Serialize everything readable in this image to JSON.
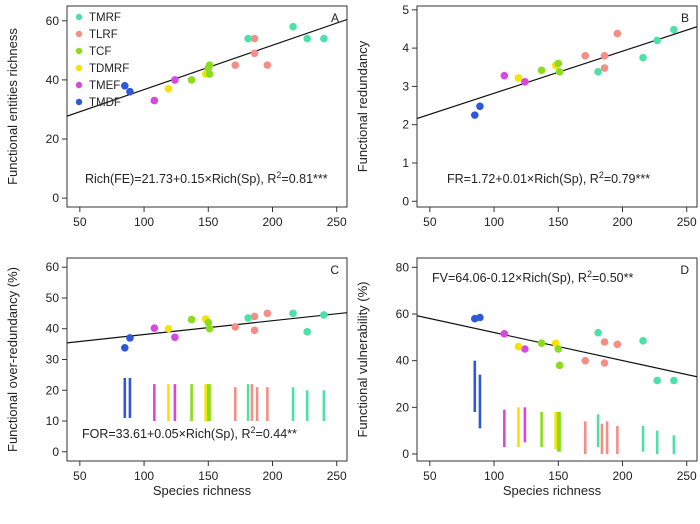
{
  "figure": {
    "xlabel": "Species richness"
  },
  "legend": [
    {
      "name": "TMRF",
      "color": "#4de0a8"
    },
    {
      "name": "TLRF",
      "color": "#f58e86"
    },
    {
      "name": "TCF",
      "color": "#8bdc1e"
    },
    {
      "name": "TDMRF",
      "color": "#f4e400"
    },
    {
      "name": "TMEF",
      "color": "#d946e0"
    },
    {
      "name": "TMDF",
      "color": "#2f58d8"
    }
  ],
  "chart_data": [
    {
      "panel": "A",
      "type": "scatter",
      "ylabel": "Functional entities richness",
      "xlabel": "",
      "xlim": [
        40,
        258
      ],
      "ylim": [
        -3,
        65
      ],
      "xticks": [
        50,
        100,
        150,
        200,
        250
      ],
      "yticks": [
        0,
        20,
        40,
        60
      ],
      "equation": "Rich(FE)=21.73+0.15×Rich(Sp), R²=0.81***",
      "fit": {
        "intercept": 21.73,
        "slope": 0.15
      },
      "points": [
        {
          "x": 85,
          "y": 38,
          "g": 5
        },
        {
          "x": 89,
          "y": 36,
          "g": 5
        },
        {
          "x": 108,
          "y": 33,
          "g": 4
        },
        {
          "x": 124,
          "y": 40,
          "g": 4
        },
        {
          "x": 119,
          "y": 37,
          "g": 3
        },
        {
          "x": 148,
          "y": 42,
          "g": 3
        },
        {
          "x": 137,
          "y": 40,
          "g": 2
        },
        {
          "x": 150,
          "y": 44,
          "g": 2
        },
        {
          "x": 151,
          "y": 42,
          "g": 2
        },
        {
          "x": 151,
          "y": 45,
          "g": 2
        },
        {
          "x": 171,
          "y": 45,
          "g": 1
        },
        {
          "x": 186,
          "y": 54,
          "g": 1
        },
        {
          "x": 186,
          "y": 49,
          "g": 1
        },
        {
          "x": 196,
          "y": 45,
          "g": 1
        },
        {
          "x": 181,
          "y": 54,
          "g": 0
        },
        {
          "x": 216,
          "y": 58,
          "g": 0
        },
        {
          "x": 227,
          "y": 54,
          "g": 0
        },
        {
          "x": 240,
          "y": 54,
          "g": 0
        }
      ]
    },
    {
      "panel": "B",
      "type": "scatter",
      "ylabel": "Functional redundancy",
      "xlabel": "",
      "xlim": [
        40,
        258
      ],
      "ylim": [
        -0.15,
        5.1
      ],
      "xticks": [
        50,
        100,
        150,
        200,
        250
      ],
      "yticks": [
        0,
        1,
        2,
        3,
        4,
        5
      ],
      "equation": "FR=1.72+0.01×Rich(Sp), R²=0.79***",
      "fit": {
        "intercept": 1.72,
        "slope": 0.011
      },
      "points": [
        {
          "x": 85,
          "y": 2.25,
          "g": 5
        },
        {
          "x": 89,
          "y": 2.48,
          "g": 5
        },
        {
          "x": 108,
          "y": 3.28,
          "g": 4
        },
        {
          "x": 124,
          "y": 3.12,
          "g": 4
        },
        {
          "x": 119,
          "y": 3.22,
          "g": 3
        },
        {
          "x": 148,
          "y": 3.55,
          "g": 3
        },
        {
          "x": 137,
          "y": 3.42,
          "g": 2
        },
        {
          "x": 150,
          "y": 3.6,
          "g": 2
        },
        {
          "x": 151,
          "y": 3.38,
          "g": 2
        },
        {
          "x": 171,
          "y": 3.8,
          "g": 1
        },
        {
          "x": 186,
          "y": 3.8,
          "g": 1
        },
        {
          "x": 186,
          "y": 3.48,
          "g": 1
        },
        {
          "x": 196,
          "y": 4.38,
          "g": 1
        },
        {
          "x": 181,
          "y": 3.38,
          "g": 0
        },
        {
          "x": 216,
          "y": 3.75,
          "g": 0
        },
        {
          "x": 227,
          "y": 4.2,
          "g": 0
        },
        {
          "x": 240,
          "y": 4.48,
          "g": 0
        }
      ]
    },
    {
      "panel": "C",
      "type": "scatter",
      "ylabel": "Functional over-redundancy (%)",
      "xlabel": "Species richness",
      "xlim": [
        40,
        258
      ],
      "ylim": [
        -3,
        63
      ],
      "xticks": [
        50,
        100,
        150,
        200,
        250
      ],
      "yticks": [
        0,
        10,
        20,
        30,
        40,
        50,
        60
      ],
      "equation": "FOR=33.61+0.05×Rich(Sp), R²=0.44**",
      "fit": {
        "intercept": 33.61,
        "slope": 0.045
      },
      "points": [
        {
          "x": 85,
          "y": 33.8,
          "g": 5
        },
        {
          "x": 89,
          "y": 37,
          "g": 5
        },
        {
          "x": 108,
          "y": 40.2,
          "g": 4
        },
        {
          "x": 124,
          "y": 37.2,
          "g": 4
        },
        {
          "x": 119,
          "y": 40,
          "g": 3
        },
        {
          "x": 148,
          "y": 43.2,
          "g": 3
        },
        {
          "x": 137,
          "y": 43,
          "g": 2
        },
        {
          "x": 150,
          "y": 42,
          "g": 2
        },
        {
          "x": 151,
          "y": 40,
          "g": 2
        },
        {
          "x": 171,
          "y": 40.6,
          "g": 1
        },
        {
          "x": 186,
          "y": 44,
          "g": 1
        },
        {
          "x": 186,
          "y": 39.5,
          "g": 1
        },
        {
          "x": 196,
          "y": 45,
          "g": 1
        },
        {
          "x": 181,
          "y": 43.5,
          "g": 0
        },
        {
          "x": 216,
          "y": 45,
          "g": 0
        },
        {
          "x": 227,
          "y": 39,
          "g": 0
        },
        {
          "x": 240,
          "y": 44.5,
          "g": 0
        }
      ],
      "ranges": [
        {
          "x": 85,
          "y0": 11,
          "y1": 24,
          "g": 5
        },
        {
          "x": 89,
          "y0": 11,
          "y1": 24,
          "g": 5
        },
        {
          "x": 108,
          "y0": 10,
          "y1": 22,
          "g": 4
        },
        {
          "x": 124,
          "y0": 10,
          "y1": 22,
          "g": 4
        },
        {
          "x": 119,
          "y0": 10,
          "y1": 22,
          "g": 3
        },
        {
          "x": 148,
          "y0": 10,
          "y1": 22,
          "g": 3
        },
        {
          "x": 137,
          "y0": 10,
          "y1": 22,
          "g": 2
        },
        {
          "x": 150,
          "y0": 10,
          "y1": 22,
          "g": 2
        },
        {
          "x": 151,
          "y0": 10,
          "y1": 22,
          "g": 2
        },
        {
          "x": 171,
          "y0": 10,
          "y1": 21,
          "g": 1
        },
        {
          "x": 184,
          "y0": 10,
          "y1": 22,
          "g": 1
        },
        {
          "x": 188,
          "y0": 10,
          "y1": 21,
          "g": 1
        },
        {
          "x": 196,
          "y0": 10,
          "y1": 21,
          "g": 1
        },
        {
          "x": 181,
          "y0": 10,
          "y1": 22,
          "g": 0
        },
        {
          "x": 216,
          "y0": 10,
          "y1": 21,
          "g": 0
        },
        {
          "x": 227,
          "y0": 10,
          "y1": 20,
          "g": 0
        },
        {
          "x": 240,
          "y0": 10,
          "y1": 20,
          "g": 0
        }
      ]
    },
    {
      "panel": "D",
      "type": "scatter",
      "ylabel": "Functional vulnerability (%)",
      "xlabel": "Species richness",
      "xlim": [
        40,
        258
      ],
      "ylim": [
        -3,
        84
      ],
      "xticks": [
        50,
        100,
        150,
        200,
        250
      ],
      "yticks": [
        0,
        20,
        40,
        60,
        80
      ],
      "equation": "FV=64.06-0.12×Rich(Sp), R²=0.50**",
      "fit": {
        "intercept": 64.06,
        "slope": -0.12
      },
      "points": [
        {
          "x": 85,
          "y": 58,
          "g": 5
        },
        {
          "x": 89,
          "y": 58.5,
          "g": 5
        },
        {
          "x": 108,
          "y": 51.5,
          "g": 4
        },
        {
          "x": 124,
          "y": 45,
          "g": 4
        },
        {
          "x": 119,
          "y": 46,
          "g": 3
        },
        {
          "x": 148,
          "y": 47.5,
          "g": 3
        },
        {
          "x": 137,
          "y": 47.5,
          "g": 2
        },
        {
          "x": 150,
          "y": 45,
          "g": 2
        },
        {
          "x": 151,
          "y": 38,
          "g": 2
        },
        {
          "x": 171,
          "y": 40,
          "g": 1
        },
        {
          "x": 186,
          "y": 48,
          "g": 1
        },
        {
          "x": 186,
          "y": 39,
          "g": 1
        },
        {
          "x": 196,
          "y": 47,
          "g": 1
        },
        {
          "x": 181,
          "y": 52,
          "g": 0
        },
        {
          "x": 216,
          "y": 48.5,
          "g": 0
        },
        {
          "x": 227,
          "y": 31.5,
          "g": 0
        },
        {
          "x": 240,
          "y": 31.5,
          "g": 0
        }
      ],
      "ranges": [
        {
          "x": 85,
          "y0": 18,
          "y1": 40,
          "g": 5
        },
        {
          "x": 89,
          "y0": 11,
          "y1": 34,
          "g": 5
        },
        {
          "x": 108,
          "y0": 3,
          "y1": 19,
          "g": 4
        },
        {
          "x": 124,
          "y0": 5,
          "y1": 20,
          "g": 4
        },
        {
          "x": 119,
          "y0": 3,
          "y1": 20,
          "g": 3
        },
        {
          "x": 148,
          "y0": 2,
          "y1": 18,
          "g": 3
        },
        {
          "x": 137,
          "y0": 3,
          "y1": 18,
          "g": 2
        },
        {
          "x": 150,
          "y0": 1,
          "y1": 18,
          "g": 2
        },
        {
          "x": 151,
          "y0": 1,
          "y1": 18,
          "g": 2
        },
        {
          "x": 171,
          "y0": 0,
          "y1": 14,
          "g": 1
        },
        {
          "x": 184,
          "y0": 0,
          "y1": 13,
          "g": 1
        },
        {
          "x": 188,
          "y0": 0,
          "y1": 14,
          "g": 1
        },
        {
          "x": 196,
          "y0": 0,
          "y1": 12,
          "g": 1
        },
        {
          "x": 181,
          "y0": 3,
          "y1": 17,
          "g": 0
        },
        {
          "x": 216,
          "y0": 1,
          "y1": 12,
          "g": 0
        },
        {
          "x": 227,
          "y0": 0,
          "y1": 10,
          "g": 0
        },
        {
          "x": 240,
          "y0": 0,
          "y1": 8,
          "g": 0
        }
      ]
    }
  ]
}
